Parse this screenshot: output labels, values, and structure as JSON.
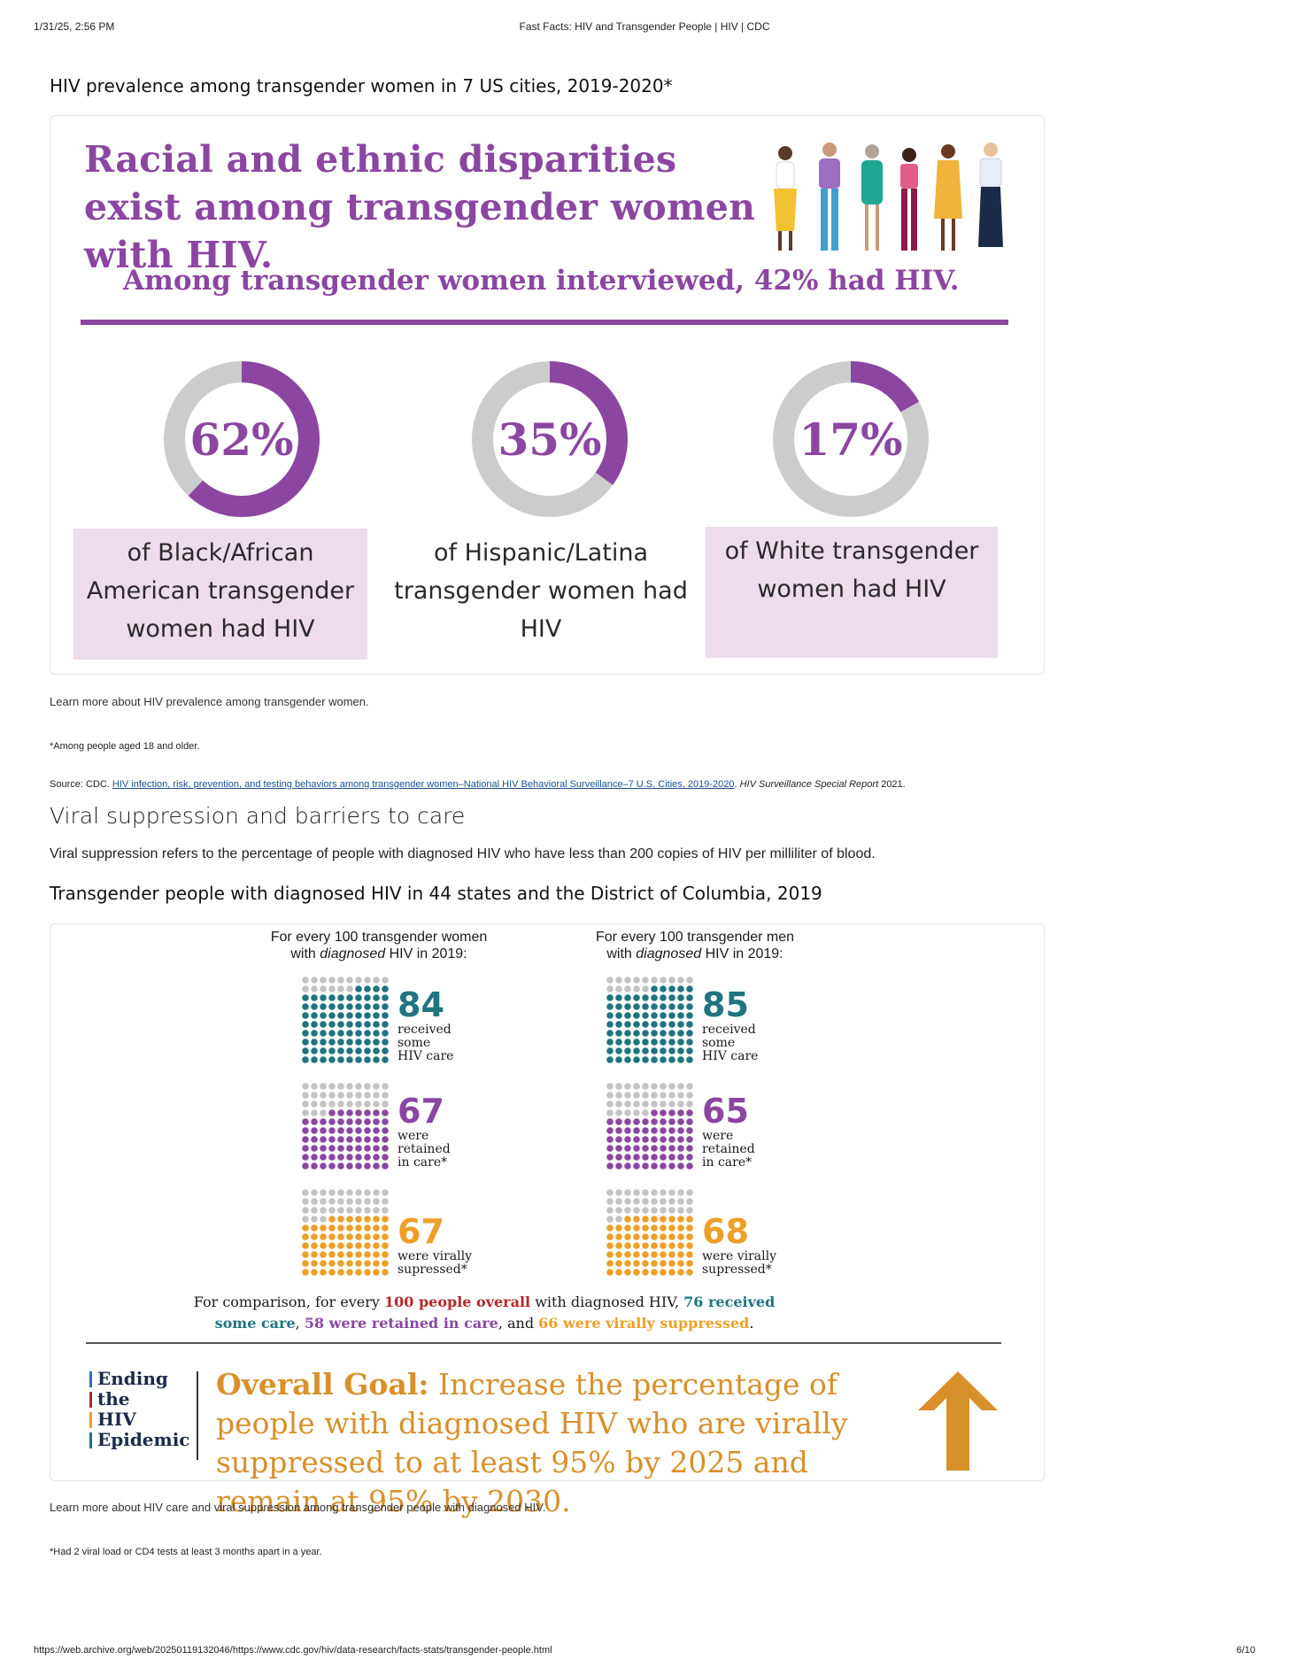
{
  "print_header": {
    "datetime": "1/31/25, 2:56 PM",
    "title": "Fast Facts: HIV and Transgender People | HIV | CDC"
  },
  "print_footer": {
    "url": "https://web.archive.org/web/20250119132046/https://www.cdc.gov/hiv/data-research/facts-stats/transgender-people.html",
    "page": "6/10"
  },
  "section1": {
    "heading": "HIV prevalence among transgender women in 7 US cities, 2019-2020*",
    "infographic": {
      "headline": "Racial and ethnic disparities exist among transgender women with HIV.",
      "subheadline": "Among transgender women interviewed, 42% had HIV.",
      "stats": [
        {
          "pct_label": "62%",
          "value": 62,
          "text": "of Black/African American transgender women had HIV"
        },
        {
          "pct_label": "35%",
          "value": 35,
          "text": "of Hispanic/Latina transgender women had HIV"
        },
        {
          "pct_label": "17%",
          "value": 17,
          "text": "of White transgender women had HIV"
        }
      ]
    },
    "learn_more": "Learn more about HIV prevalence among transgender women.",
    "footnote": "*Among people aged 18 and older.",
    "source_prefix": "Source: CDC. ",
    "source_link": "HIV infection, risk, prevention, and testing behaviors among transgender women–National HIV Behavioral Surveillance–7 U.S. Cities, 2019-2020",
    "source_sep": ". ",
    "source_italic": "HIV Surveillance Special Report",
    "source_year": " 2021."
  },
  "section2": {
    "heading": "Viral suppression and barriers to care",
    "definition": "Viral suppression refers to the percentage of people with diagnosed HIV who have less than 200 copies of HIV per milliliter of blood.",
    "subheading": "Transgender people with diagnosed HIV in 44 states and the District of Columbia, 2019",
    "women": {
      "head_1": "For every 100 transgender women",
      "head_2_pre": "with ",
      "head_2_em": "diagnosed",
      "head_2_post": " HIV in 2019:",
      "care": {
        "value": 84,
        "label": "84",
        "l1": "received",
        "l2": "some",
        "l3": "HIV care"
      },
      "retained": {
        "value": 67,
        "label": "67",
        "l1": "were",
        "l2": "retained",
        "l3": "in care*"
      },
      "suppressed": {
        "value": 67,
        "label": "67",
        "l1": "were virally",
        "l2": "supressed*"
      }
    },
    "men": {
      "head_1": "For every 100 transgender men",
      "head_2_pre": "with ",
      "head_2_em": "diagnosed",
      "head_2_post": " HIV in 2019:",
      "care": {
        "value": 85,
        "label": "85",
        "l1": "received",
        "l2": "some",
        "l3": "HIV care"
      },
      "retained": {
        "value": 65,
        "label": "65",
        "l1": "were",
        "l2": "retained",
        "l3": "in care*"
      },
      "suppressed": {
        "value": 68,
        "label": "68",
        "l1": "were virally",
        "l2": "supressed*"
      }
    },
    "comparison": {
      "a": "For comparison, for every ",
      "b": "100 people overall",
      "c": " with diagnosed HIV, ",
      "d": "76 received some care",
      "e": ", ",
      "f": "58 were retained in care",
      "g": ", and ",
      "h": "66 were virally suppressed",
      "i": "."
    },
    "ehe": [
      "Ending",
      "the",
      "HIV",
      "Epidemic"
    ],
    "ehe_colors": [
      "#2a73b8",
      "#b5282a",
      "#ee9f27",
      "#1f7480"
    ],
    "goal_bold": "Overall Goal:",
    "goal_text": " Increase the percentage of people with diagnosed HIV who are virally suppressed to at least 95% by 2025 and remain at 95% by 2030.",
    "learn_more": "Learn more about HIV care and viral suppression among transgender people with diagnosed HIV.",
    "footnote": "*Had 2 viral load or CD4 tests at least 3 months apart in a year."
  },
  "colors": {
    "purple": "#8b46a1",
    "teal": "#1f7480",
    "orange": "#ee9f27",
    "gray_dot": "#c4c4c4",
    "ring_gray": "#cccccc",
    "goal_orange": "#d8902a"
  }
}
